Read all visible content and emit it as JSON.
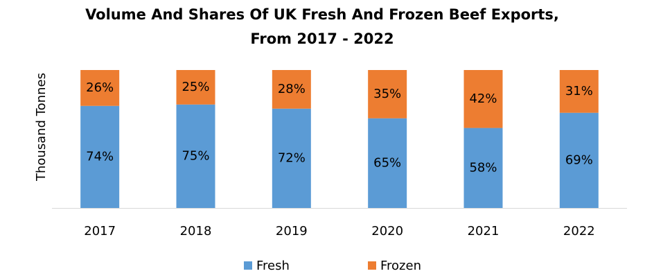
{
  "chart_data": {
    "type": "stacked_bar_percent",
    "title": [
      "Volume And Shares Of UK Fresh And Frozen Beef Exports,",
      "From 2017 - 2022"
    ],
    "y_label": "Thousand Tonnes",
    "categories": [
      "2017",
      "2018",
      "2019",
      "2020",
      "2021",
      "2022"
    ],
    "series": [
      {
        "name": "Fresh",
        "color": "#5b9bd5",
        "values": [
          74,
          75,
          72,
          65,
          58,
          69
        ],
        "value_labels": [
          "74%",
          "75%",
          "72%",
          "65%",
          "58%",
          "69%"
        ]
      },
      {
        "name": "Frozen",
        "color": "#ed7d31",
        "values": [
          26,
          25,
          28,
          35,
          42,
          31
        ],
        "value_labels": [
          "26%",
          "25%",
          "28%",
          "35%",
          "42%",
          "31%"
        ]
      }
    ],
    "legend": "bottom"
  }
}
